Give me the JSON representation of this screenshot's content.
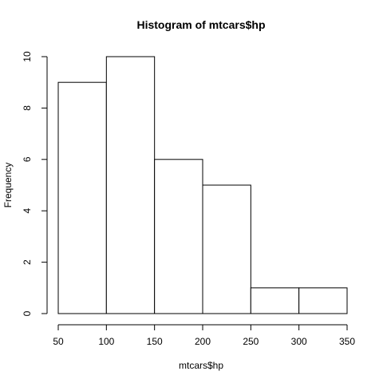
{
  "chart_data": {
    "type": "bar",
    "title": "Histogram of mtcars$hp",
    "xlabel": "mtcars$hp",
    "ylabel": "Frequency",
    "bins": [
      {
        "start": 50,
        "end": 100,
        "count": 9
      },
      {
        "start": 100,
        "end": 150,
        "count": 10
      },
      {
        "start": 150,
        "end": 200,
        "count": 6
      },
      {
        "start": 200,
        "end": 250,
        "count": 5
      },
      {
        "start": 250,
        "end": 300,
        "count": 1
      },
      {
        "start": 300,
        "end": 350,
        "count": 1
      }
    ],
    "xlim": [
      50,
      350
    ],
    "ylim": [
      0,
      10
    ],
    "xticks": [
      50,
      100,
      150,
      200,
      250,
      300,
      350
    ],
    "yticks": [
      0,
      2,
      4,
      6,
      8,
      10
    ],
    "grid": false,
    "legend": "none",
    "bar_fill": "#ffffff",
    "bar_stroke": "#000000"
  }
}
